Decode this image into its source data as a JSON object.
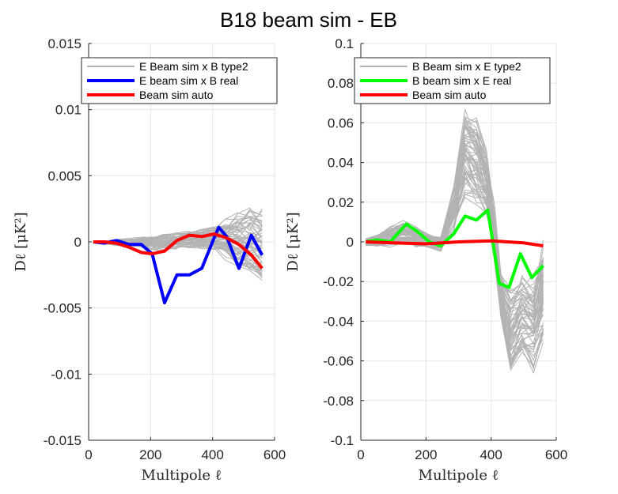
{
  "figure_title": "B18 beam sim - EB",
  "chart_data": [
    {
      "type": "line",
      "xlabel": "Multipole ℓ",
      "ylabel": "Dℓ [μK²]",
      "xlim": [
        0,
        600
      ],
      "ylim": [
        -0.015,
        0.015
      ],
      "xticks": [
        0,
        200,
        400,
        600
      ],
      "xtick_labels": [
        "0",
        "200",
        "400",
        "600"
      ],
      "yticks": [
        -0.015,
        -0.01,
        -0.005,
        0,
        0.005,
        0.01,
        0.015
      ],
      "ytick_labels": [
        "-0.015",
        "-0.01",
        "-0.005",
        "0",
        "0.005",
        "0.01",
        "0.015"
      ],
      "grid": true,
      "legend_position": "top",
      "sim_band": {
        "name": "E Beam sim x B type2",
        "color": "#b3b3b3",
        "x": [
          15,
          50,
          90,
          140,
          180,
          200,
          240,
          280,
          320,
          360,
          400,
          440,
          480,
          520,
          560
        ],
        "lower": [
          -0.0001,
          -0.0002,
          -0.0003,
          -0.0004,
          -0.0005,
          -0.0006,
          -0.0008,
          -0.0006,
          -0.0005,
          -0.0006,
          -0.0008,
          -0.0014,
          -0.0022,
          -0.0028,
          -0.0038
        ],
        "upper": [
          0.0001,
          0.0001,
          0.0002,
          0.0003,
          0.0004,
          0.0005,
          0.0007,
          0.0008,
          0.0009,
          0.001,
          0.0013,
          0.0018,
          0.0024,
          0.003,
          0.0035
        ]
      },
      "series": [
        {
          "name": "E beam sim x B real",
          "color": "#0000ff",
          "x": [
            15,
            50,
            90,
            130,
            170,
            205,
            245,
            285,
            325,
            365,
            405,
            420,
            445,
            485,
            525,
            560
          ],
          "y": [
            0,
            -0.0001,
            0.0001,
            -0.0002,
            -0.0002,
            -0.0009,
            -0.0046,
            -0.0025,
            -0.0025,
            -0.002,
            0.0003,
            0.0011,
            0.0004,
            -0.002,
            0.0005,
            -0.001
          ]
        },
        {
          "name": "Beam sim auto",
          "color": "#ff0000",
          "x": [
            15,
            50,
            90,
            130,
            170,
            205,
            245,
            285,
            325,
            365,
            405,
            445,
            485,
            525,
            560
          ],
          "y": [
            0,
            0,
            -0.0001,
            -0.0004,
            -0.0008,
            -0.0009,
            -0.0007,
            0.0001,
            0.0005,
            0.0004,
            0.0006,
            0.0003,
            -0.0002,
            -0.001,
            -0.002
          ]
        }
      ]
    },
    {
      "type": "line",
      "xlabel": "Multipole ℓ",
      "ylabel": "Dℓ [μK²]",
      "xlim": [
        0,
        600
      ],
      "ylim": [
        -0.1,
        0.1
      ],
      "xticks": [
        0,
        200,
        400,
        600
      ],
      "xtick_labels": [
        "0",
        "200",
        "400",
        "600"
      ],
      "yticks": [
        -0.1,
        -0.08,
        -0.06,
        -0.04,
        -0.02,
        0,
        0.02,
        0.04,
        0.06,
        0.08,
        0.1
      ],
      "ytick_labels": [
        "-0.1",
        "-0.08",
        "-0.06",
        "-0.04",
        "-0.02",
        "0",
        "0.02",
        "0.04",
        "0.06",
        "0.08",
        "0.1"
      ],
      "grid": true,
      "legend_position": "top",
      "sim_band": {
        "name": "B Beam sim x E type2",
        "color": "#b3b3b3",
        "x": [
          15,
          50,
          90,
          130,
          170,
          205,
          245,
          285,
          320,
          355,
          385,
          410,
          430,
          460,
          495,
          530,
          560
        ],
        "lower": [
          -0.002,
          -0.003,
          -0.003,
          -0.002,
          -0.003,
          -0.003,
          -0.005,
          0.004,
          0.02,
          0.015,
          0.01,
          -0.01,
          -0.04,
          -0.07,
          -0.062,
          -0.068,
          -0.058
        ],
        "upper": [
          0.002,
          0.004,
          0.008,
          0.011,
          0.008,
          0.005,
          0.003,
          0.03,
          0.07,
          0.065,
          0.05,
          0.02,
          -0.015,
          -0.02,
          -0.01,
          -0.014,
          0.008
        ]
      },
      "series": [
        {
          "name": "B beam sim x E real",
          "color": "#00ff00",
          "x": [
            15,
            50,
            90,
            140,
            175,
            210,
            245,
            285,
            320,
            355,
            390,
            425,
            455,
            490,
            525,
            560
          ],
          "y": [
            0,
            0.001,
            0,
            0.009,
            0.005,
            0,
            -0.002,
            0.004,
            0.013,
            0.011,
            0.016,
            -0.021,
            -0.023,
            -0.006,
            -0.018,
            -0.012
          ]
        },
        {
          "name": "Beam sim auto",
          "color": "#ff0000",
          "x": [
            15,
            100,
            200,
            300,
            400,
            500,
            560
          ],
          "y": [
            0,
            -0.0005,
            -0.001,
            0,
            0.0005,
            -0.0005,
            -0.002
          ]
        }
      ]
    }
  ]
}
